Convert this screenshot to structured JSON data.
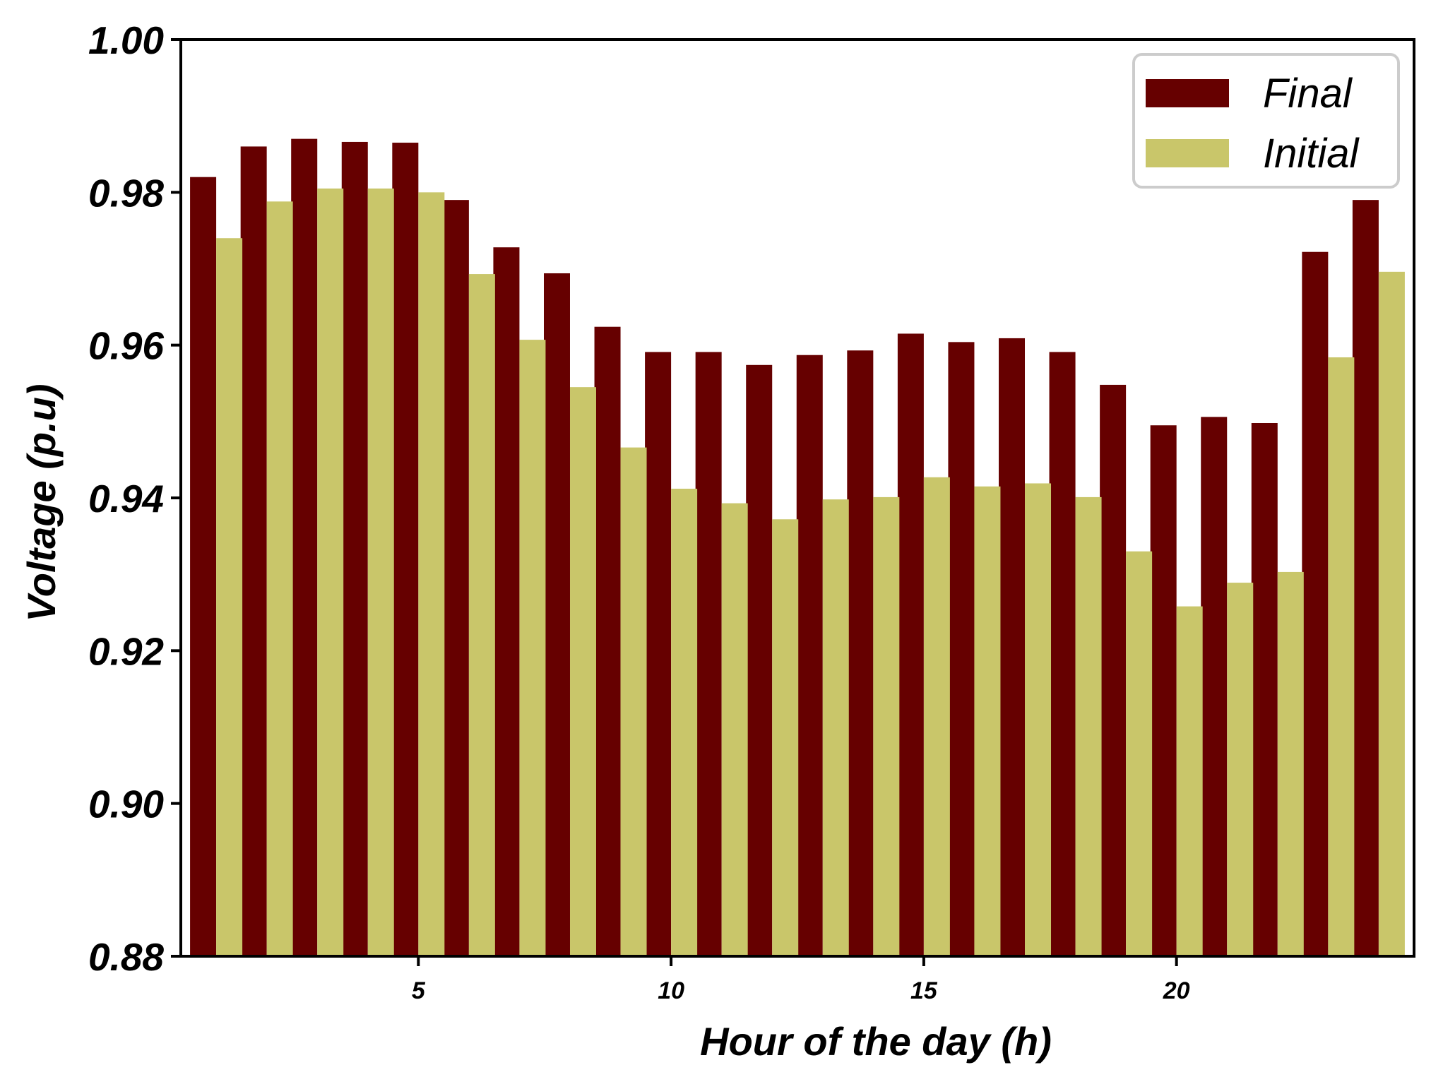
{
  "chart_data": {
    "type": "bar",
    "title": "",
    "xlabel": "Hour of the day (h)",
    "ylabel": "Voltage (p.u)",
    "x": [
      1,
      2,
      3,
      4,
      5,
      6,
      7,
      8,
      9,
      10,
      11,
      12,
      13,
      14,
      15,
      16,
      17,
      18,
      19,
      20,
      21,
      22,
      23,
      24
    ],
    "x_ticks": [
      5,
      10,
      15,
      20
    ],
    "x_tick_labels": [
      "5",
      "10",
      "15",
      "20"
    ],
    "ylim": [
      0.88,
      1.0
    ],
    "y_ticks": [
      0.88,
      0.9,
      0.92,
      0.94,
      0.96,
      0.98,
      1.0
    ],
    "y_tick_labels": [
      "0.88",
      "0.90",
      "0.92",
      "0.94",
      "0.96",
      "0.98",
      "1.00"
    ],
    "grid": false,
    "legend_position": "top-right",
    "series": [
      {
        "name": "Final",
        "color": "#660000",
        "values": [
          0.982,
          0.986,
          0.987,
          0.9866,
          0.9865,
          0.979,
          0.9728,
          0.9694,
          0.9624,
          0.9591,
          0.9591,
          0.9574,
          0.9587,
          0.9593,
          0.9615,
          0.9604,
          0.9609,
          0.9591,
          0.9548,
          0.9495,
          0.9506,
          0.9498,
          0.9722,
          0.979
        ]
      },
      {
        "name": "Initial",
        "color": "#c9c66a",
        "values": [
          0.974,
          0.9788,
          0.9805,
          0.9805,
          0.98,
          0.9693,
          0.9607,
          0.9545,
          0.9466,
          0.9412,
          0.9393,
          0.9372,
          0.9398,
          0.9401,
          0.9427,
          0.9415,
          0.9419,
          0.9401,
          0.933,
          0.9258,
          0.9289,
          0.9303,
          0.9584,
          0.9696
        ]
      }
    ]
  }
}
